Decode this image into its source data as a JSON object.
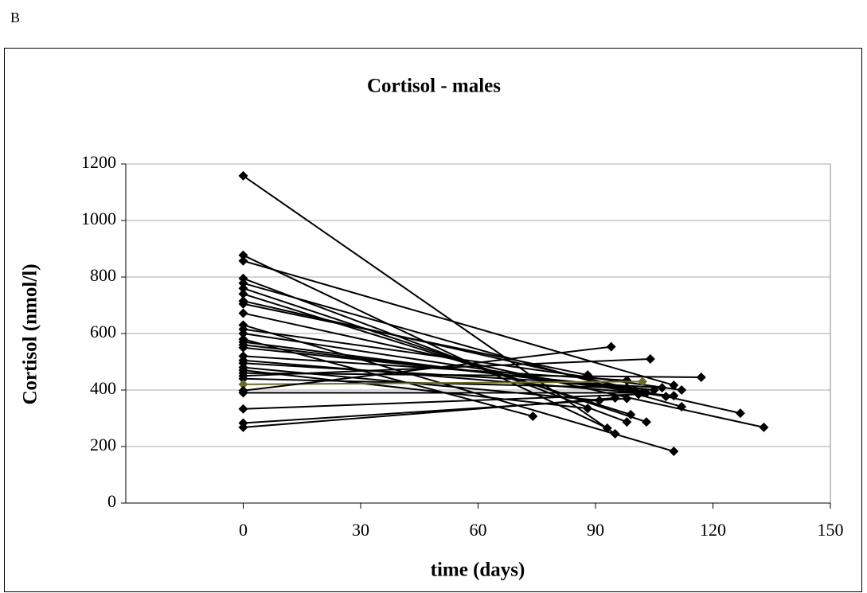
{
  "panel_label": "B",
  "chart_data": {
    "type": "line",
    "title": "Cortisol - males",
    "x_label": "time (days)",
    "y_label": "Cortisol (nmol/l)",
    "xlim": [
      -30,
      150
    ],
    "xticks": [
      0,
      30,
      60,
      90,
      120,
      150
    ],
    "ylim": [
      0,
      1200
    ],
    "yticks": [
      0,
      200,
      400,
      600,
      800,
      1000,
      1200
    ],
    "grid": true,
    "marker": "diamond",
    "series": [
      {
        "color": "#000000",
        "x": [
          0,
          95
        ],
        "values": [
          1158,
          245
        ]
      },
      {
        "color": "#000000",
        "x": [
          0,
          93
        ],
        "values": [
          877,
          265
        ]
      },
      {
        "color": "#000000",
        "x": [
          0,
          110
        ],
        "values": [
          857,
          417
        ]
      },
      {
        "color": "#000000",
        "x": [
          0,
          98
        ],
        "values": [
          795,
          287
        ]
      },
      {
        "color": "#000000",
        "x": [
          0,
          112
        ],
        "values": [
          778,
          341
        ]
      },
      {
        "color": "#000000",
        "x": [
          0,
          103
        ],
        "values": [
          760,
          287
        ]
      },
      {
        "color": "#000000",
        "x": [
          0,
          99
        ],
        "values": [
          740,
          313
        ]
      },
      {
        "color": "#000000",
        "x": [
          0,
          127
        ],
        "values": [
          715,
          318
        ]
      },
      {
        "color": "#000000",
        "x": [
          0,
          88
        ],
        "values": [
          705,
          453
        ]
      },
      {
        "color": "#000000",
        "x": [
          0,
          133
        ],
        "values": [
          672,
          268
        ]
      },
      {
        "color": "#000000",
        "x": [
          0,
          110
        ],
        "values": [
          630,
          183
        ]
      },
      {
        "color": "#000000",
        "x": [
          0,
          112
        ],
        "values": [
          615,
          400
        ]
      },
      {
        "color": "#000000",
        "x": [
          0,
          108
        ],
        "values": [
          600,
          377
        ]
      },
      {
        "color": "#000000",
        "x": [
          0,
          74
        ],
        "values": [
          580,
          307
        ]
      },
      {
        "color": "#000000",
        "x": [
          0,
          102
        ],
        "values": [
          570,
          392
        ]
      },
      {
        "color": "#000000",
        "x": [
          0,
          100
        ],
        "values": [
          560,
          400
        ]
      },
      {
        "color": "#000000",
        "x": [
          0,
          105
        ],
        "values": [
          550,
          400
        ]
      },
      {
        "color": "#000000",
        "x": [
          0,
          98
        ],
        "values": [
          520,
          434
        ]
      },
      {
        "color": "#000000",
        "x": [
          0,
          110
        ],
        "values": [
          505,
          380
        ]
      },
      {
        "color": "#000000",
        "x": [
          0,
          107
        ],
        "values": [
          495,
          408
        ]
      },
      {
        "color": "#000000",
        "x": [
          0,
          91
        ],
        "values": [
          480,
          363
        ]
      },
      {
        "color": "#000000",
        "x": [
          0,
          88
        ],
        "values": [
          470,
          335
        ]
      },
      {
        "color": "#000000",
        "x": [
          0,
          117
        ],
        "values": [
          460,
          445
        ]
      },
      {
        "color": "#000000",
        "x": [
          0,
          104
        ],
        "values": [
          450,
          510
        ]
      },
      {
        "color": "#000000",
        "x": [
          0,
          98
        ],
        "values": [
          440,
          408
        ]
      },
      {
        "color": "#6b6b2a",
        "x": [
          0,
          102
        ],
        "values": [
          420,
          430
        ]
      },
      {
        "color": "#000000",
        "x": [
          0,
          94
        ],
        "values": [
          398,
          553
        ]
      },
      {
        "color": "#000000",
        "x": [
          0,
          103
        ],
        "values": [
          390,
          390
        ]
      },
      {
        "color": "#000000",
        "x": [
          0,
          101
        ],
        "values": [
          333,
          385
        ]
      },
      {
        "color": "#000000",
        "x": [
          0,
          98
        ],
        "values": [
          283,
          370
        ]
      },
      {
        "color": "#000000",
        "x": [
          0,
          95
        ],
        "values": [
          268,
          372
        ]
      }
    ]
  }
}
